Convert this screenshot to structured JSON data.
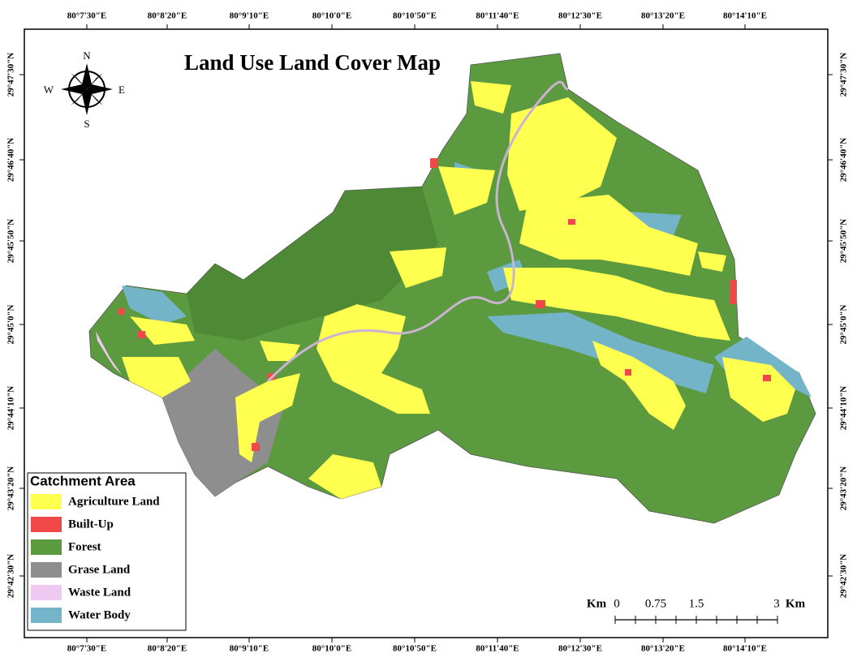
{
  "title": "Land Use Land Cover  Map",
  "longitude_labels": [
    "80°7'30\"E",
    "80°8'20\"E",
    "80°9'10\"E",
    "80°10'0\"E",
    "80°10'50\"E",
    "80°11'40\"E",
    "80°12'30\"E",
    "80°13'20\"E",
    "80°14'10\"E"
  ],
  "latitude_labels": [
    "29°47'30\"N",
    "29°46'40\"N",
    "29°45'50\"N",
    "29°45'0\"N",
    "29°44'10\"N",
    "29°43'20\"N",
    "29°42'30\"N"
  ],
  "north_arrow": {
    "n": "N",
    "s": "S",
    "e": "E",
    "w": "W"
  },
  "legend": {
    "title": "Catchment Area",
    "items": [
      {
        "label": "Agriculture Land",
        "color": "#ffff4f"
      },
      {
        "label": "Built-Up",
        "color": "#f04848"
      },
      {
        "label": "Forest",
        "color": "#5c9a40"
      },
      {
        "label": "Grase Land",
        "color": "#8e8e8e"
      },
      {
        "label": "Waste Land",
        "color": "#efc9f2"
      },
      {
        "label": "Water Body",
        "color": "#73b4c8"
      }
    ]
  },
  "scale_bar": {
    "unit_left": "Km",
    "labels": [
      "0",
      "0.75",
      "1.5",
      "3"
    ],
    "unit_right": "Km"
  }
}
